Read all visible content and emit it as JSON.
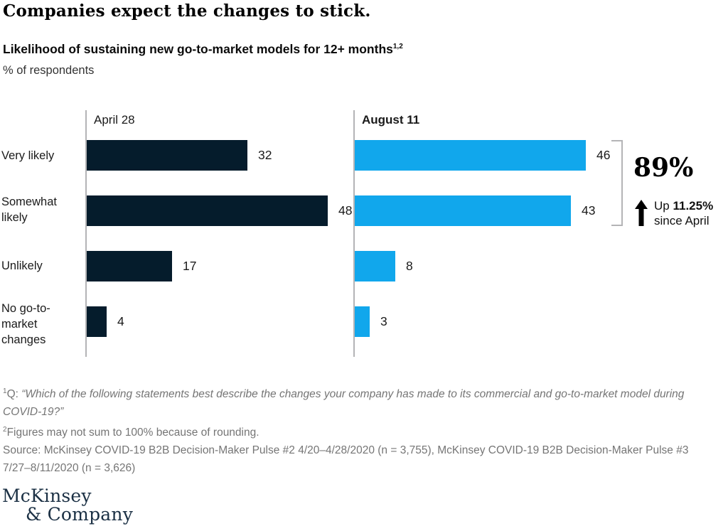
{
  "page": {
    "title": "Companies expect the changes to stick.",
    "subtitle": "Likelihood of sustaining new go-to-market models for 12+ months",
    "subtitle_superscript": "1,2",
    "unit_label": "% of respondents"
  },
  "chart_data": {
    "type": "bar",
    "orientation": "horizontal",
    "title": "Likelihood of sustaining new go-to-market models for 12+ months",
    "value_unit": "% of respondents",
    "categories": [
      "Very likely",
      "Somewhat likely",
      "Unlikely",
      "No go-to-market changes"
    ],
    "series": [
      {
        "name": "April 28",
        "values": [
          32,
          48,
          17,
          4
        ],
        "color": "#051c2c"
      },
      {
        "name": "August 11",
        "values": [
          46,
          43,
          8,
          3
        ],
        "color": "#11a7ec"
      }
    ],
    "xlim": [
      0,
      51
    ],
    "grid": false,
    "annotation": {
      "total": "89%",
      "arrow": "up",
      "line1_prefix": "Up ",
      "line1_bold": "11.25%",
      "line2": "since April",
      "applies_to": "sum of Very likely + Somewhat likely on August 11"
    }
  },
  "colors": {
    "april_bar": "#051c2c",
    "august_bar": "#11a7ec",
    "axis": "#b4b4b6",
    "footnote_text": "#757575",
    "logo_navy": "#1b3044"
  },
  "footnotes": {
    "f1": {
      "sup": "1",
      "prefix": "Q: ",
      "quote": "“Which of the following statements best describe the changes your company has made to its commercial and go-to-market model during COVID-19?”"
    },
    "f2": {
      "sup": "2",
      "text": "Figures may not sum to 100% because of rounding."
    },
    "source": "Source: McKinsey COVID-19 B2B Decision-Maker Pulse #2 4/20–4/28/2020 (n = 3,755), McKinsey COVID-19 B2B Decision-Maker Pulse #3 7/27–8/11/2020 (n = 3,626)"
  },
  "logo": {
    "line1": "McKinsey",
    "line2": "& Company"
  }
}
